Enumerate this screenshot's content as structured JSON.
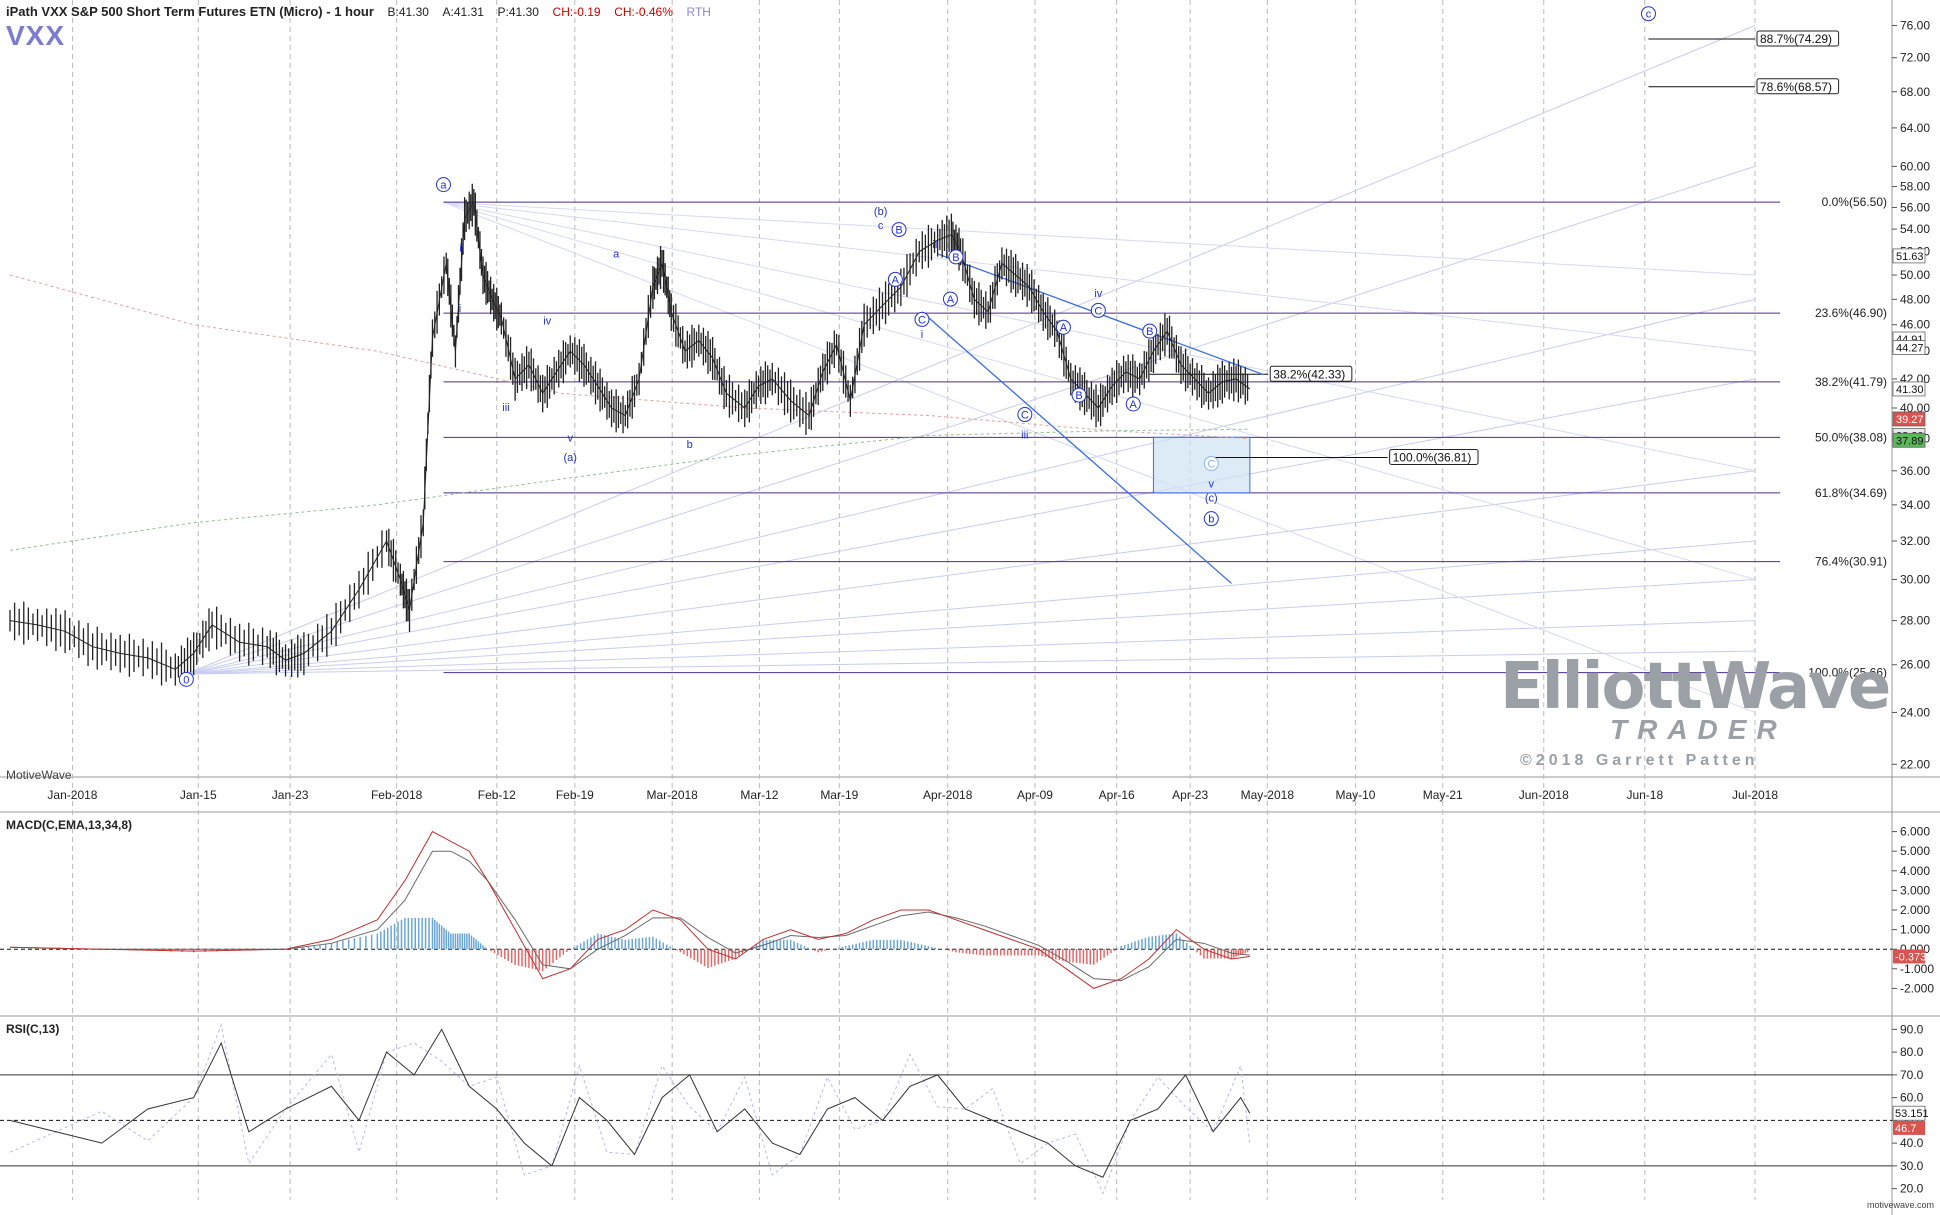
{
  "header": {
    "title": "iPath VXX S&P 500 Short Term Futures ETN (Micro) - 1 hour",
    "bid": "B:41.30",
    "ask": "A:41.31",
    "price": "P:41.30",
    "change": "CH:-0.19",
    "change_pct": "CH:-0.46%",
    "session": "RTH",
    "symbol": "VXX"
  },
  "branding": {
    "platform": "MotiveWave",
    "platform_url": "motivewave.com",
    "logo_line1": "ElliottWave",
    "logo_line2": "TRADER",
    "logo_line3": "©2018 Garrett Patten"
  },
  "colors": {
    "price_bars": "#222222",
    "fib_lines": "#4b2b8f",
    "wave_labels": "#2233cc",
    "trend_lines": "#3a6ee8",
    "macd_line": "#c03030",
    "signal_line": "#6a6a6a",
    "hist_pos": "#6aa6d8",
    "hist_neg": "#e06a6a",
    "rsi_line": "#333333",
    "target_box": "#cfe3f3"
  },
  "chart_data": [
    {
      "type": "line",
      "name": "price",
      "title": "iPath VXX S&P 500 Short Term Futures ETN (Micro) - 1 hour",
      "x_ticks": [
        "Jan-2018",
        "Jan-15",
        "Jan-23",
        "Feb-2018",
        "Feb-12",
        "Feb-19",
        "Mar-2018",
        "Mar-12",
        "Mar-19",
        "Apr-2018",
        "Apr-09",
        "Apr-16",
        "Apr-23",
        "May-2018",
        "May-10",
        "May-21",
        "Jun-2018",
        "Jun-18",
        "Jul-2018"
      ],
      "x_tick_pos": [
        0.68,
        2.05,
        3.05,
        4.21,
        5.3,
        6.15,
        7.21,
        8.16,
        9.03,
        10.21,
        11.16,
        12.05,
        12.85,
        13.69,
        14.65,
        15.6,
        16.7,
        17.8,
        19.0
      ],
      "ylim": [
        21.5,
        78
      ],
      "y_ticks": [
        22,
        24,
        26,
        28,
        30,
        32,
        34,
        36,
        38,
        40,
        42,
        44,
        46,
        48,
        50,
        52,
        54,
        56,
        58,
        60,
        64,
        68,
        72,
        76
      ],
      "x": [
        0,
        0.3,
        0.6,
        0.9,
        1.2,
        1.5,
        1.8,
        2.0,
        2.2,
        2.5,
        2.8,
        3.0,
        3.2,
        3.5,
        3.8,
        4.1,
        4.25,
        4.35,
        4.5,
        4.6,
        4.75,
        4.85,
        4.95,
        5.05,
        5.15,
        5.25,
        5.35,
        5.5,
        5.65,
        5.8,
        5.95,
        6.1,
        6.25,
        6.4,
        6.55,
        6.7,
        6.85,
        7.0,
        7.1,
        7.2,
        7.35,
        7.5,
        7.65,
        7.8,
        8.0,
        8.15,
        8.3,
        8.5,
        8.7,
        8.85,
        9.0,
        9.15,
        9.3,
        9.5,
        9.7,
        9.9,
        10.1,
        10.25,
        10.35,
        10.5,
        10.65,
        10.8,
        10.95,
        11.1,
        11.25,
        11.4,
        11.55,
        11.7,
        11.85,
        12.0,
        12.15,
        12.3,
        12.45,
        12.6,
        12.75,
        12.9,
        13.05,
        13.2,
        13.35,
        13.5
      ],
      "values": [
        28.0,
        27.8,
        27.5,
        26.8,
        26.5,
        26.3,
        25.8,
        26.5,
        27.8,
        27.0,
        26.8,
        26.2,
        26.5,
        27.5,
        29.5,
        32.0,
        30.0,
        28.5,
        33.0,
        45.0,
        51.0,
        44.0,
        55.0,
        56.5,
        50.0,
        48.0,
        46.5,
        42.0,
        43.0,
        41.0,
        42.5,
        44.0,
        43.0,
        41.5,
        40.0,
        39.5,
        42.0,
        49.0,
        51.0,
        47.0,
        44.0,
        44.8,
        43.5,
        41.0,
        40.0,
        41.5,
        42.0,
        40.5,
        39.5,
        42.5,
        44.5,
        40.5,
        46.0,
        47.5,
        49.0,
        52.0,
        53.0,
        53.5,
        52.0,
        48.0,
        47.0,
        51.0,
        50.0,
        49.0,
        47.0,
        45.5,
        42.0,
        41.0,
        40.0,
        41.5,
        42.5,
        42.0,
        44.0,
        45.5,
        43.0,
        42.0,
        41.0,
        41.8,
        42.0,
        41.3
      ]
    },
    {
      "type": "line",
      "name": "MACD(C,EMA,13,34,8)",
      "ylim": [
        -3,
        7
      ],
      "y_ticks": [
        -2,
        -1,
        0,
        1,
        2,
        3,
        4,
        5,
        6
      ],
      "x": [
        0,
        1,
        2,
        3,
        3.5,
        4,
        4.3,
        4.6,
        4.8,
        5.0,
        5.2,
        5.5,
        5.8,
        6.1,
        6.4,
        6.7,
        7.0,
        7.3,
        7.6,
        7.9,
        8.2,
        8.5,
        8.8,
        9.1,
        9.4,
        9.7,
        10.0,
        10.3,
        10.6,
        10.9,
        11.2,
        11.5,
        11.8,
        12.1,
        12.4,
        12.7,
        13.0,
        13.3,
        13.5
      ],
      "macd": [
        0.1,
        0.0,
        -0.1,
        0.0,
        0.5,
        1.5,
        3.5,
        6.0,
        5.5,
        5.0,
        3.5,
        1.0,
        -1.5,
        -1.0,
        0.5,
        1.0,
        2.0,
        1.5,
        0.0,
        -0.5,
        0.5,
        1.0,
        0.5,
        0.8,
        1.5,
        2.0,
        2.0,
        1.5,
        1.0,
        0.5,
        0.0,
        -1.0,
        -2.0,
        -1.5,
        -0.5,
        1.0,
        0.0,
        -0.5,
        -0.37
      ],
      "signal": [
        0.1,
        0.0,
        0.0,
        0.0,
        0.3,
        1.0,
        2.5,
        5.0,
        5.0,
        4.5,
        3.5,
        1.5,
        -0.8,
        -1.0,
        0.0,
        0.7,
        1.6,
        1.6,
        0.6,
        -0.2,
        0.2,
        0.7,
        0.6,
        0.7,
        1.2,
        1.7,
        1.9,
        1.6,
        1.2,
        0.7,
        0.2,
        -0.6,
        -1.5,
        -1.6,
        -0.9,
        0.5,
        0.3,
        -0.2,
        -0.3
      ],
      "last_value": "-0.373"
    },
    {
      "type": "line",
      "name": "RSI(C,13)",
      "ylim": [
        15,
        95
      ],
      "y_ticks": [
        20,
        30,
        40,
        50,
        60,
        70,
        80,
        90
      ],
      "x": [
        0,
        0.5,
        1.0,
        1.5,
        2.0,
        2.3,
        2.6,
        3.0,
        3.5,
        3.8,
        4.1,
        4.4,
        4.7,
        5.0,
        5.3,
        5.6,
        5.9,
        6.2,
        6.5,
        6.8,
        7.1,
        7.4,
        7.7,
        8.0,
        8.3,
        8.6,
        8.9,
        9.2,
        9.5,
        9.8,
        10.1,
        10.4,
        10.7,
        11.0,
        11.3,
        11.6,
        11.9,
        12.2,
        12.5,
        12.8,
        13.1,
        13.4,
        13.5
      ],
      "values": [
        50,
        45,
        40,
        55,
        60,
        84,
        45,
        55,
        65,
        50,
        80,
        70,
        90,
        65,
        55,
        40,
        30,
        60,
        50,
        35,
        60,
        70,
        45,
        55,
        40,
        35,
        55,
        60,
        50,
        65,
        70,
        55,
        50,
        45,
        40,
        30,
        25,
        50,
        55,
        70,
        45,
        60,
        53.151
      ],
      "overbought": 70,
      "oversold": 30,
      "mid": 50,
      "last_values": [
        "53.151",
        "46.7"
      ]
    }
  ],
  "fib_levels": [
    {
      "label": "0.0%(56.50)",
      "price": 56.5
    },
    {
      "label": "23.6%(46.90)",
      "price": 46.9
    },
    {
      "label": "38.2%(41.79)",
      "price": 41.79
    },
    {
      "label": "50.0%(38.08)",
      "price": 38.08
    },
    {
      "label": "61.8%(34.69)",
      "price": 34.69
    },
    {
      "label": "76.4%(30.91)",
      "price": 30.91
    },
    {
      "label": "100.0%(25.66)",
      "price": 25.66
    }
  ],
  "ext_labels": [
    {
      "label": "88.7%(74.29)",
      "price": 74.29
    },
    {
      "label": "78.6%(68.57)",
      "price": 68.57
    },
    {
      "label": "38.2%(42.33)",
      "price": 42.33
    },
    {
      "label": "100.0%(36.81)",
      "price": 36.81
    }
  ],
  "price_labels": [
    "51.63",
    "44.91",
    "44.27",
    "41.30",
    "39.27",
    "38.20",
    "37.89"
  ],
  "wave_labels": [
    {
      "t": "0",
      "x": 1.92,
      "p": 25.2,
      "c": true
    },
    {
      "t": "a",
      "x": 4.72,
      "p": 57.8,
      "c": true
    },
    {
      "t": "ii",
      "x": 4.92,
      "p": 52.0
    },
    {
      "t": "i",
      "x": 4.9,
      "p": 47.0
    },
    {
      "t": "iii",
      "x": 5.4,
      "p": 39.8
    },
    {
      "t": "iv",
      "x": 5.85,
      "p": 46.0
    },
    {
      "t": "v",
      "x": 6.1,
      "p": 37.8
    },
    {
      "t": "(a)",
      "x": 6.1,
      "p": 36.6
    },
    {
      "t": "a",
      "x": 6.6,
      "p": 51.5
    },
    {
      "t": "b",
      "x": 7.4,
      "p": 37.4
    },
    {
      "t": "(b)",
      "x": 9.48,
      "p": 55.3
    },
    {
      "t": "c",
      "x": 9.48,
      "p": 54.0
    },
    {
      "t": "B",
      "x": 9.68,
      "p": 53.6,
      "c": true
    },
    {
      "t": "A",
      "x": 9.64,
      "p": 49.3,
      "c": true
    },
    {
      "t": "C",
      "x": 9.93,
      "p": 46.1,
      "c": true
    },
    {
      "t": "i",
      "x": 9.93,
      "p": 45.0
    },
    {
      "t": "ii",
      "x": 10.07,
      "p": 52.3
    },
    {
      "t": "B",
      "x": 10.3,
      "p": 51.2,
      "c": true
    },
    {
      "t": "A",
      "x": 10.24,
      "p": 47.7,
      "c": true
    },
    {
      "t": "C",
      "x": 11.05,
      "p": 39.3,
      "c": true
    },
    {
      "t": "iii",
      "x": 11.05,
      "p": 38.0
    },
    {
      "t": "A",
      "x": 11.47,
      "p": 45.5,
      "c": true
    },
    {
      "t": "B",
      "x": 11.64,
      "p": 40.6,
      "c": true
    },
    {
      "t": "iv",
      "x": 11.85,
      "p": 48.2
    },
    {
      "t": "C",
      "x": 11.85,
      "p": 46.8,
      "c": true
    },
    {
      "t": "B",
      "x": 12.41,
      "p": 45.2,
      "c": true
    },
    {
      "t": "A",
      "x": 12.23,
      "p": 40.0,
      "c": true
    },
    {
      "t": "C",
      "x": 13.08,
      "p": 36.2,
      "c": true,
      "light": true
    },
    {
      "t": "v",
      "x": 13.08,
      "p": 35.0
    },
    {
      "t": "(c)",
      "x": 13.08,
      "p": 34.2
    },
    {
      "t": "b",
      "x": 13.08,
      "p": 33.0,
      "c": true
    },
    {
      "t": "c",
      "x": 17.84,
      "p": 77.0,
      "c": true
    }
  ]
}
